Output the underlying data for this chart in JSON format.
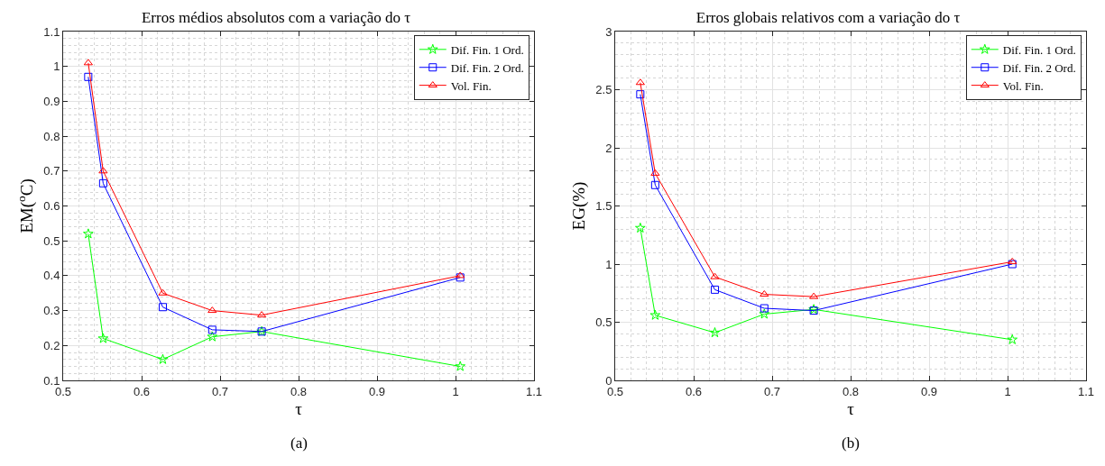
{
  "chart_data": [
    {
      "type": "line",
      "title": "Erros médios absolutos com a variação do τ",
      "xlabel": "τ",
      "ylabel": "EM($^{o}$C)",
      "annotations": [
        "(a)"
      ],
      "x": [
        0.532,
        0.551,
        0.627,
        0.69,
        0.753,
        1.006
      ],
      "series": [
        {
          "name": "Dif. Fin. 1 Ord.",
          "color": "#00ff00",
          "marker": "star",
          "values": [
            0.52,
            0.22,
            0.16,
            0.225,
            0.24,
            0.14
          ]
        },
        {
          "name": "Dif. Fin. 2 Ord.",
          "color": "#0000ff",
          "marker": "square",
          "values": [
            0.97,
            0.665,
            0.31,
            0.245,
            0.24,
            0.395
          ]
        },
        {
          "name": "Vol. Fin.",
          "color": "#ff0000",
          "marker": "triangle",
          "values": [
            1.01,
            0.7,
            0.35,
            0.3,
            0.287,
            0.4
          ]
        }
      ],
      "xlim": [
        0.5,
        1.1
      ],
      "xticks": [
        0.5,
        0.6,
        0.7,
        0.8,
        0.9,
        1,
        1.1
      ],
      "ylim": [
        0.1,
        1.1
      ],
      "yticks": [
        0.1,
        0.2,
        0.3,
        0.4,
        0.5,
        0.6,
        0.7,
        0.8,
        0.9,
        1,
        1.1
      ],
      "grid": true,
      "legend": "top right",
      "line_style": "solid"
    },
    {
      "type": "line",
      "title": "Erros globais relativos com a variação do τ",
      "xlabel": "τ",
      "ylabel": "EG(%)",
      "annotations": [
        "(b)"
      ],
      "x": [
        0.532,
        0.551,
        0.627,
        0.69,
        0.753,
        1.006
      ],
      "series": [
        {
          "name": "Dif. Fin. 1 Ord.",
          "color": "#00ff00",
          "marker": "star",
          "values": [
            1.31,
            0.56,
            0.41,
            0.57,
            0.61,
            0.35
          ]
        },
        {
          "name": "Dif. Fin. 2 Ord.",
          "color": "#0000ff",
          "marker": "square",
          "values": [
            2.46,
            1.68,
            0.78,
            0.62,
            0.6,
            1.0
          ]
        },
        {
          "name": "Vol. Fin.",
          "color": "#ff0000",
          "marker": "triangle",
          "values": [
            2.56,
            1.78,
            0.89,
            0.74,
            0.72,
            1.02
          ]
        }
      ],
      "xlim": [
        0.5,
        1.1
      ],
      "xticks": [
        0.5,
        0.6,
        0.7,
        0.8,
        0.9,
        1,
        1.1
      ],
      "ylim": [
        0,
        3
      ],
      "yticks": [
        0,
        0.5,
        1,
        1.5,
        2,
        2.5,
        3
      ],
      "grid": true,
      "legend": "top right",
      "line_style": "solid"
    }
  ]
}
